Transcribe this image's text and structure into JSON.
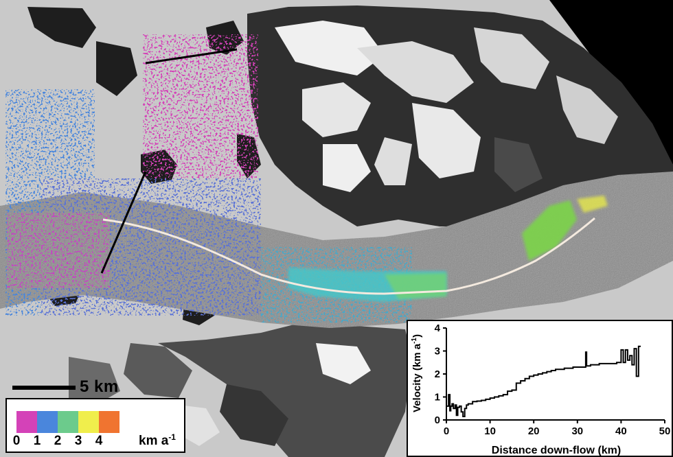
{
  "scale_bar": {
    "label": "5 km"
  },
  "legend": {
    "ticks": [
      "0",
      "1",
      "2",
      "3",
      "4"
    ],
    "unit": "km a",
    "unit_sup": "-1",
    "colors": [
      "#d442b8",
      "#4a86dc",
      "#6ccb8c",
      "#f0ee4c",
      "#f07430"
    ]
  },
  "colors": {
    "flowline": "#f4eadf",
    "transect": "#000000",
    "velocity_low": "#d442b8",
    "velocity_mid": "#4a86dc",
    "velocity_fast": "#7cd44a"
  },
  "chart_data": {
    "type": "line",
    "xlabel": "Distance down-flow (km)",
    "ylabel": "Velocity (km a",
    "ylabel_sup": "-1",
    "ylabel_tail": ")",
    "xlim": [
      0,
      50
    ],
    "ylim": [
      0,
      4
    ],
    "xticks": [
      "0",
      "10",
      "20",
      "30",
      "40",
      "50"
    ],
    "yticks": [
      "0",
      "1",
      "2",
      "3",
      "4"
    ],
    "series": [
      {
        "x": [
          0,
          0.5,
          0.8,
          1.0,
          1.3,
          1.6,
          2.0,
          2.3,
          2.6,
          3.0,
          3.4,
          3.8,
          4.2,
          4.6,
          5.0,
          5.5,
          6.0,
          7.0,
          8.0,
          9.0,
          10.0,
          11.0,
          12.0,
          13.0,
          14.0,
          15.0,
          16.0,
          17.0,
          18.0,
          19.0,
          20.0,
          21.0,
          22.0,
          23.0,
          24.0,
          25.0,
          26.0,
          27.0,
          28.0,
          29.0,
          30.0,
          31.0,
          31.9,
          32.1,
          32.4,
          33.0,
          34.0,
          35.0,
          36.0,
          37.0,
          38.0,
          39.0,
          40.0,
          40.5,
          41.0,
          41.5,
          42.0,
          42.5,
          43.0,
          43.5,
          44.0,
          44.5
        ],
        "y": [
          0.6,
          1.1,
          0.4,
          0.6,
          0.7,
          0.5,
          0.65,
          0.2,
          0.55,
          0.6,
          0.35,
          0.15,
          0.5,
          0.65,
          0.7,
          0.7,
          0.8,
          0.82,
          0.85,
          0.9,
          0.95,
          1.0,
          1.05,
          1.1,
          1.25,
          1.3,
          1.6,
          1.7,
          1.8,
          1.9,
          1.95,
          2.0,
          2.05,
          2.1,
          2.15,
          2.2,
          2.2,
          2.25,
          2.25,
          2.3,
          2.3,
          2.3,
          2.95,
          2.35,
          2.35,
          2.4,
          2.4,
          2.45,
          2.45,
          2.45,
          2.45,
          2.5,
          3.05,
          2.5,
          3.05,
          2.6,
          2.8,
          2.4,
          3.1,
          1.9,
          3.2,
          3.2
        ]
      }
    ]
  }
}
